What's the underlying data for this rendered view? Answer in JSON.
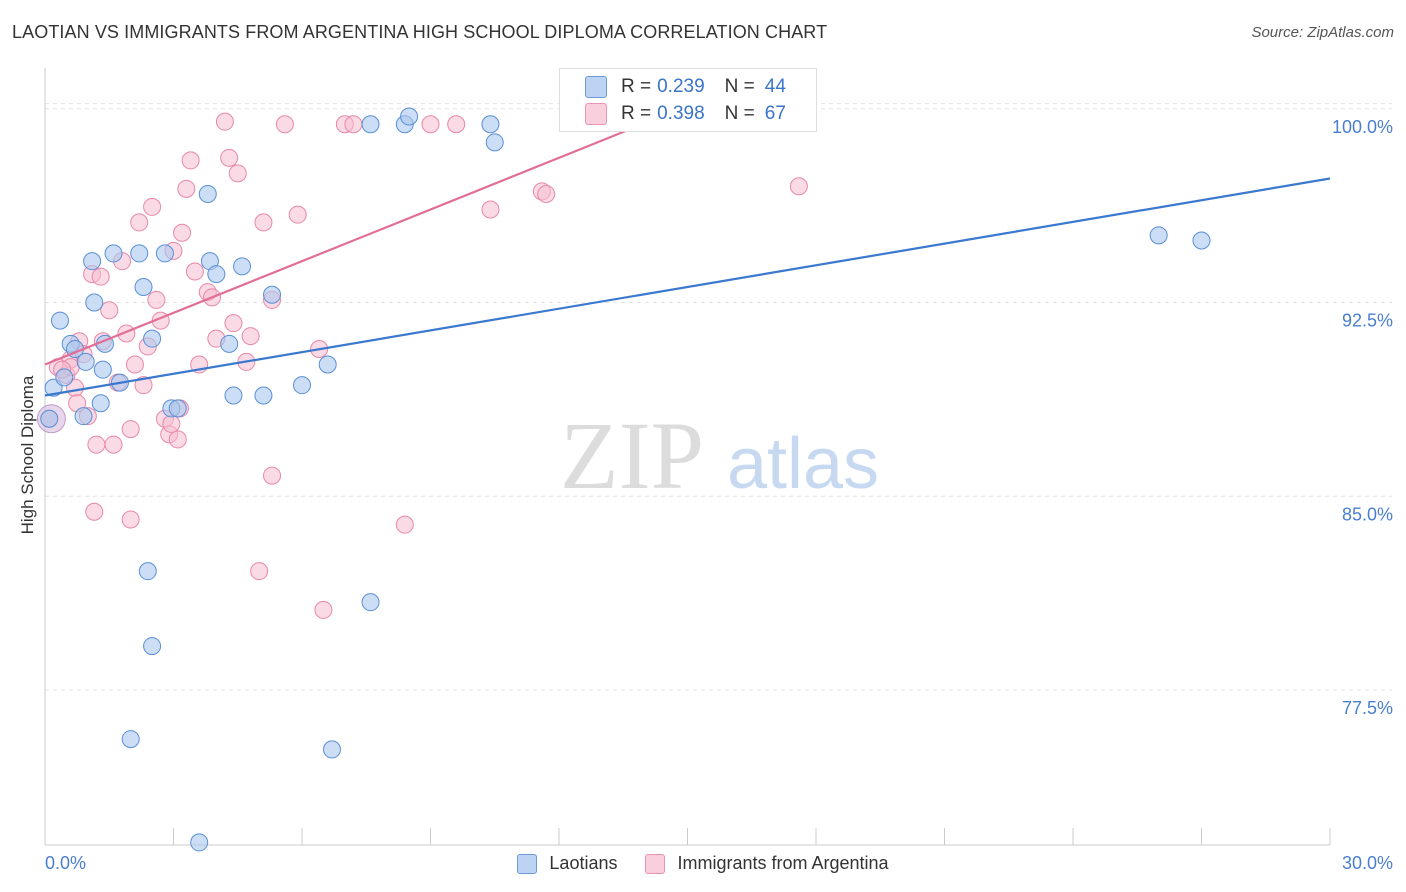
{
  "title": "LAOTIAN VS IMMIGRANTS FROM ARGENTINA HIGH SCHOOL DIPLOMA CORRELATION CHART",
  "source": "Source: ZipAtlas.com",
  "watermark": {
    "zip": "ZIP",
    "atlas": "atlas"
  },
  "legend": {
    "r_label": "R =",
    "n_label": "N =",
    "series1": {
      "r": "0.239",
      "n": "44"
    },
    "series2": {
      "r": "0.398",
      "n": "67"
    }
  },
  "colors": {
    "laotians_fill": "#aac8ee",
    "laotians_stroke": "#5a8fd6",
    "laotians_line": "#3b78cf",
    "argentina_fill": "#f6bdd0",
    "argentina_stroke": "#e888a8",
    "argentina_line": "#e26e97",
    "tick_label": "#4a7fd0"
  },
  "chart_data": {
    "type": "scatter",
    "title": "LAOTIAN VS IMMIGRANTS FROM ARGENTINA HIGH SCHOOL DIPLOMA CORRELATION CHART",
    "xlabel": "",
    "ylabel": "High School Diploma",
    "xlim": [
      0,
      30
    ],
    "ylim": [
      71.5,
      101.5
    ],
    "x_tick_labels": [
      "0.0%",
      "30.0%"
    ],
    "y_ticks": [
      77.5,
      85.0,
      92.5,
      100.0
    ],
    "y_tick_labels": [
      "77.5%",
      "85.0%",
      "92.5%",
      "100.0%"
    ],
    "series": [
      {
        "name": "Laotians",
        "r": 0.239,
        "n": 44,
        "trend": {
          "x0": 0.0,
          "y0": 88.9,
          "x1": 30.0,
          "y1": 97.3
        },
        "points": [
          [
            0.1,
            88.0
          ],
          [
            0.2,
            89.2
          ],
          [
            0.35,
            91.8
          ],
          [
            0.45,
            89.6
          ],
          [
            0.6,
            90.9
          ],
          [
            0.7,
            90.7
          ],
          [
            0.9,
            88.1
          ],
          [
            0.95,
            90.2
          ],
          [
            1.1,
            94.1
          ],
          [
            1.15,
            92.5
          ],
          [
            1.3,
            88.6
          ],
          [
            1.35,
            89.9
          ],
          [
            1.4,
            90.9
          ],
          [
            1.6,
            94.4
          ],
          [
            1.75,
            89.4
          ],
          [
            2.2,
            94.4
          ],
          [
            2.3,
            93.1
          ],
          [
            2.5,
            91.1
          ],
          [
            2.8,
            94.4
          ],
          [
            2.95,
            88.4
          ],
          [
            3.1,
            88.4
          ],
          [
            3.8,
            96.7
          ],
          [
            3.85,
            94.1
          ],
          [
            4.0,
            93.6
          ],
          [
            4.3,
            90.9
          ],
          [
            4.4,
            88.9
          ],
          [
            4.6,
            93.9
          ],
          [
            5.1,
            88.9
          ],
          [
            5.3,
            92.8
          ],
          [
            6.0,
            89.3
          ],
          [
            6.6,
            90.1
          ],
          [
            7.6,
            99.4
          ],
          [
            8.4,
            99.4
          ],
          [
            8.5,
            99.7
          ],
          [
            10.4,
            99.4
          ],
          [
            10.5,
            98.7
          ],
          [
            26.0,
            95.1
          ],
          [
            27.0,
            94.9
          ],
          [
            2.4,
            82.1
          ],
          [
            2.5,
            79.2
          ],
          [
            2.0,
            75.6
          ],
          [
            6.7,
            75.2
          ],
          [
            3.6,
            71.6
          ],
          [
            7.6,
            80.9
          ]
        ]
      },
      {
        "name": "Immigrants from Argentina",
        "r": 0.398,
        "n": 67,
        "trend": {
          "x0": 0.0,
          "y0": 90.1,
          "x1": 16.8,
          "y1": 101.3
        },
        "points": [
          [
            0.1,
            88.0
          ],
          [
            0.3,
            90.0
          ],
          [
            0.5,
            89.7
          ],
          [
            0.6,
            90.3
          ],
          [
            0.7,
            89.2
          ],
          [
            0.8,
            91.0
          ],
          [
            0.9,
            90.5
          ],
          [
            1.0,
            88.1
          ],
          [
            1.1,
            93.6
          ],
          [
            1.2,
            87.0
          ],
          [
            1.3,
            93.5
          ],
          [
            1.35,
            91.0
          ],
          [
            1.5,
            92.2
          ],
          [
            1.6,
            87.0
          ],
          [
            1.8,
            94.1
          ],
          [
            1.9,
            91.3
          ],
          [
            2.0,
            87.6
          ],
          [
            2.1,
            90.1
          ],
          [
            2.2,
            95.6
          ],
          [
            2.3,
            89.3
          ],
          [
            2.4,
            90.8
          ],
          [
            2.5,
            96.2
          ],
          [
            2.6,
            92.6
          ],
          [
            2.7,
            91.8
          ],
          [
            2.8,
            88.0
          ],
          [
            2.9,
            87.4
          ],
          [
            3.0,
            94.5
          ],
          [
            3.1,
            87.2
          ],
          [
            3.2,
            95.2
          ],
          [
            3.3,
            96.9
          ],
          [
            3.4,
            98.0
          ],
          [
            3.5,
            93.7
          ],
          [
            3.6,
            90.1
          ],
          [
            3.8,
            92.9
          ],
          [
            3.9,
            92.7
          ],
          [
            4.0,
            91.1
          ],
          [
            4.2,
            99.5
          ],
          [
            4.3,
            98.1
          ],
          [
            4.4,
            91.7
          ],
          [
            4.5,
            97.5
          ],
          [
            4.7,
            90.2
          ],
          [
            4.8,
            91.2
          ],
          [
            5.1,
            95.6
          ],
          [
            5.3,
            92.6
          ],
          [
            5.6,
            99.4
          ],
          [
            5.9,
            95.9
          ],
          [
            6.4,
            90.7
          ],
          [
            7.0,
            99.4
          ],
          [
            7.2,
            99.4
          ],
          [
            9.0,
            99.4
          ],
          [
            9.6,
            99.4
          ],
          [
            10.4,
            96.1
          ],
          [
            11.6,
            96.8
          ],
          [
            11.7,
            96.7
          ],
          [
            17.6,
            97.0
          ],
          [
            1.15,
            84.4
          ],
          [
            2.0,
            84.1
          ],
          [
            5.3,
            85.8
          ],
          [
            5.0,
            82.1
          ],
          [
            6.5,
            80.6
          ],
          [
            8.4,
            83.9
          ],
          [
            0.6,
            90.0
          ],
          [
            1.7,
            89.4
          ],
          [
            3.15,
            88.4
          ],
          [
            2.95,
            87.8
          ],
          [
            0.4,
            89.9
          ],
          [
            0.75,
            88.6
          ]
        ]
      }
    ]
  },
  "bottom_legend": {
    "item1": "Laotians",
    "item2": "Immigrants from Argentina"
  }
}
